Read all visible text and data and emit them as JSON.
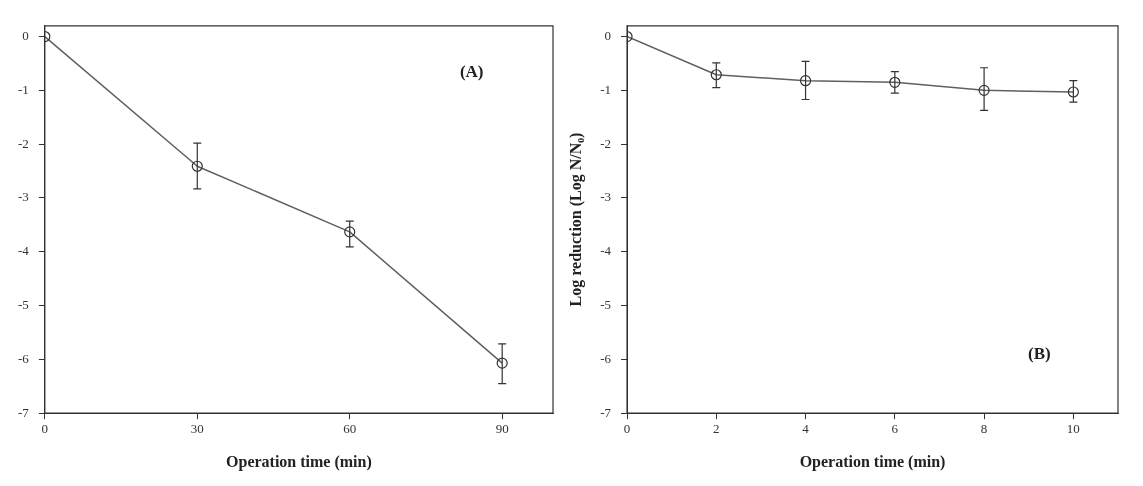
{
  "chart_data": [
    {
      "type": "line",
      "xlabel": "Operation time (min)",
      "annotations": [
        "(A)"
      ],
      "x": [
        0,
        30,
        60,
        90
      ],
      "xlim": [
        0,
        100
      ],
      "xticks": [
        0,
        30,
        60,
        90
      ],
      "ylim": [
        -7,
        0.2
      ],
      "yticks": [
        0,
        -1,
        -2,
        -3,
        -4,
        -5,
        -6,
        -7
      ],
      "marker": "circle",
      "line_style": "solid",
      "series": [
        {
          "color": "#606060",
          "values": [
            0,
            -2.41,
            -3.63,
            -6.07
          ],
          "errors": [
            null,
            [
              -2.83,
              -1.98
            ],
            [
              -3.91,
              -3.43
            ],
            [
              -6.45,
              -5.71
            ]
          ]
        }
      ]
    },
    {
      "type": "line",
      "xlabel": "Operation time (min)",
      "ylabel": "Log reduction (Log N/N₀)",
      "annotations": [
        "(B)"
      ],
      "x": [
        0,
        2,
        4,
        6,
        8,
        10
      ],
      "xlim": [
        0,
        11
      ],
      "xticks": [
        0,
        2,
        4,
        6,
        8,
        10
      ],
      "ylim": [
        -7,
        0.2
      ],
      "yticks": [
        0,
        -1,
        -2,
        -3,
        -4,
        -5,
        -6,
        -7
      ],
      "marker": "circle",
      "line_style": "solid",
      "series": [
        {
          "color": "#606060",
          "values": [
            0,
            -0.71,
            -0.82,
            -0.85,
            -1.0,
            -1.03
          ],
          "errors": [
            null,
            [
              -0.95,
              -0.49
            ],
            [
              -1.17,
              -0.46
            ],
            [
              -1.05,
              -0.65
            ],
            [
              -1.37,
              -0.58
            ],
            [
              -1.22,
              -0.82
            ]
          ]
        }
      ]
    }
  ]
}
